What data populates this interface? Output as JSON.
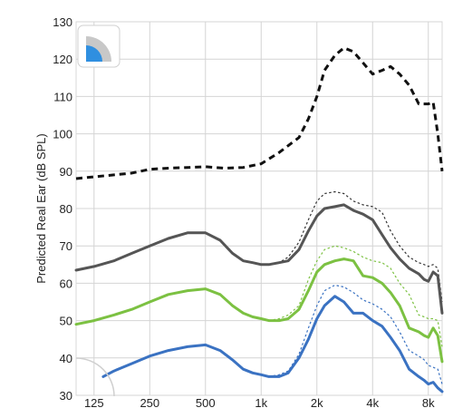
{
  "chart_data": {
    "type": "line",
    "title": "",
    "xlabel": "",
    "ylabel": "Predicted Real Ear (dB SPL)",
    "xscale": "log",
    "xlim": [
      100,
      9500
    ],
    "ylim": [
      30,
      130
    ],
    "yticks": [
      30,
      40,
      50,
      60,
      70,
      80,
      90,
      100,
      110,
      120,
      130
    ],
    "xticks": [
      {
        "value": 125,
        "label": "125"
      },
      {
        "value": 250,
        "label": "250"
      },
      {
        "value": 500,
        "label": "500"
      },
      {
        "value": 1000,
        "label": "1k"
      },
      {
        "value": 2000,
        "label": "2k"
      },
      {
        "value": 4000,
        "label": "4k"
      },
      {
        "value": 8000,
        "label": "8k"
      }
    ],
    "grid": true,
    "legend": "none",
    "series": [
      {
        "style": "dashed-thick",
        "color": "#111111",
        "x": [
          100,
          125,
          160,
          200,
          250,
          315,
          400,
          500,
          630,
          800,
          1000,
          1250,
          1600,
          1800,
          2000,
          2200,
          2500,
          2800,
          3150,
          3550,
          4000,
          4500,
          5000,
          5600,
          6300,
          7100,
          8000,
          8500,
          9000,
          9500
        ],
        "y": [
          88,
          88.5,
          89,
          89.5,
          90.5,
          90.8,
          91,
          91.2,
          90.8,
          91,
          92,
          95,
          99,
          104,
          110,
          117,
          121,
          123,
          122,
          119,
          116,
          117,
          118,
          116,
          113,
          108,
          108,
          108.5,
          100,
          90
        ]
      },
      {
        "style": "solid",
        "color": "#555555",
        "x": [
          100,
          125,
          160,
          200,
          250,
          315,
          400,
          500,
          600,
          700,
          800,
          900,
          1000,
          1100,
          1250,
          1400,
          1600,
          1800,
          2000,
          2200,
          2500,
          2800,
          3150,
          3550,
          4000,
          4500,
          5000,
          5600,
          6300,
          7100,
          7600,
          8000,
          8500,
          9000,
          9500
        ],
        "y": [
          63.5,
          64.5,
          66,
          68,
          70,
          72,
          73.5,
          73.5,
          71.5,
          68,
          66,
          65.5,
          65,
          65,
          65.5,
          66,
          69,
          74,
          78,
          80,
          80.5,
          81,
          79.5,
          78.5,
          77,
          73,
          69.5,
          66.5,
          64,
          62.5,
          61,
          60.5,
          63,
          62,
          52
        ]
      },
      {
        "style": "dotted",
        "color": "#333333",
        "x": [
          1100,
          1250,
          1400,
          1600,
          1800,
          2000,
          2200,
          2500,
          2800,
          3150,
          3550,
          4000,
          4500,
          5000,
          5600,
          6300,
          7100,
          7600,
          8000,
          8500,
          9000,
          9500
        ],
        "y": [
          65,
          65.5,
          67,
          71,
          77,
          82,
          84,
          84.5,
          84,
          82,
          81,
          80.5,
          79,
          74,
          70,
          67,
          65.5,
          65,
          64.5,
          65,
          64,
          55
        ]
      },
      {
        "style": "solid",
        "color": "#7cc142",
        "x": [
          100,
          125,
          160,
          200,
          250,
          315,
          400,
          500,
          600,
          700,
          800,
          900,
          1000,
          1100,
          1250,
          1400,
          1600,
          1800,
          2000,
          2200,
          2500,
          2800,
          3150,
          3550,
          4000,
          4500,
          5000,
          5600,
          6300,
          7100,
          7600,
          8000,
          8500,
          9000,
          9500
        ],
        "y": [
          49,
          50,
          51.5,
          53,
          55,
          57,
          58,
          58.5,
          57,
          54,
          52,
          51,
          50.5,
          50,
          50,
          50.5,
          53,
          58,
          63,
          65,
          66,
          66.5,
          66,
          62,
          61.5,
          60,
          57.5,
          54,
          48,
          47,
          46,
          45.5,
          48,
          46,
          39
        ]
      },
      {
        "style": "dotted",
        "color": "#7cc142",
        "x": [
          1100,
          1250,
          1400,
          1600,
          1800,
          2000,
          2200,
          2500,
          2800,
          3150,
          3550,
          4000,
          4500,
          5000,
          5600,
          6300,
          7100,
          7600,
          8000,
          8500,
          9000,
          9500
        ],
        "y": [
          50,
          50.5,
          51.5,
          54,
          61,
          66,
          69,
          70,
          69.5,
          68.5,
          67,
          66,
          65.5,
          64,
          60,
          57,
          51.5,
          51,
          50.5,
          50.5,
          50,
          43
        ]
      },
      {
        "style": "solid",
        "color": "#3a72c2",
        "x": [
          140,
          160,
          200,
          250,
          315,
          400,
          500,
          600,
          700,
          800,
          900,
          1000,
          1100,
          1250,
          1400,
          1600,
          1800,
          2000,
          2200,
          2500,
          2800,
          3150,
          3550,
          4000,
          4500,
          5000,
          5600,
          6300,
          7100,
          7600,
          8000,
          8500,
          9000,
          9500
        ],
        "y": [
          35,
          36.5,
          38.5,
          40.5,
          42,
          43,
          43.5,
          42,
          39.5,
          37,
          36,
          35.5,
          35,
          35,
          36,
          40,
          45,
          50.5,
          54,
          56.5,
          55,
          52,
          52,
          50,
          48.5,
          45.5,
          42,
          37,
          35,
          34,
          33,
          33.5,
          32,
          31
        ]
      },
      {
        "style": "dotted",
        "color": "#3a72c2",
        "x": [
          1100,
          1250,
          1400,
          1600,
          1800,
          2000,
          2200,
          2500,
          2800,
          3150,
          3550,
          4000,
          4500,
          5000,
          5600,
          6300,
          7100,
          7600,
          8000,
          8500,
          9000,
          9500
        ],
        "y": [
          35,
          35.5,
          36.5,
          41,
          48,
          54,
          58,
          59.5,
          59,
          57.5,
          55.5,
          54.5,
          53,
          51,
          47,
          42,
          40.5,
          39.5,
          38,
          37.5,
          37,
          33
        ]
      }
    ]
  },
  "icons": {
    "top": "speaker-quadrant-icon",
    "bottom": "partial-circle-icon",
    "icon_colors": {
      "accent": "#2f8fe0",
      "muted": "#c8c8c8"
    }
  }
}
